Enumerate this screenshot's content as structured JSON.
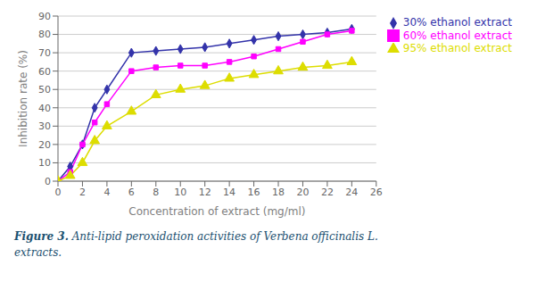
{
  "chart_data": {
    "type": "line",
    "x": [
      0,
      1,
      2,
      3,
      4,
      6,
      8,
      10,
      12,
      14,
      16,
      18,
      20,
      22,
      24
    ],
    "series": [
      {
        "name": "30% ethanol extract",
        "color": "#3333AA",
        "marker": "diamond",
        "values": [
          0,
          8,
          20,
          40,
          50,
          70,
          71,
          72,
          73,
          75,
          77,
          79,
          80,
          81,
          83
        ]
      },
      {
        "name": "60% ethanol extract",
        "color": "#FF00FF",
        "marker": "square",
        "values": [
          0,
          5,
          20,
          32,
          42,
          60,
          62,
          63,
          63,
          65,
          68,
          72,
          76,
          80,
          82
        ]
      },
      {
        "name": "95% ethanol extract",
        "color": "#DDDD00",
        "marker": "triangle",
        "values": [
          0,
          3,
          10,
          22,
          30,
          38,
          47,
          50,
          52,
          56,
          58,
          60,
          62,
          63,
          65
        ]
      }
    ],
    "xlabel": "Concentration of extract (mg/ml)",
    "ylabel": "Inhibition rate (%)",
    "xlim": [
      0,
      26
    ],
    "ylim": [
      0,
      90
    ],
    "xticks": [
      0,
      2,
      4,
      6,
      8,
      10,
      12,
      14,
      16,
      18,
      20,
      22,
      24,
      26
    ],
    "yticks": [
      0,
      10,
      20,
      30,
      40,
      50,
      60,
      70,
      80,
      90
    ],
    "grid": "y",
    "legend": "right",
    "annotations": [
      "Figure 3.",
      "Anti-lipid peroxidation activities of Verbena officinalis L.",
      "extracts."
    ]
  }
}
